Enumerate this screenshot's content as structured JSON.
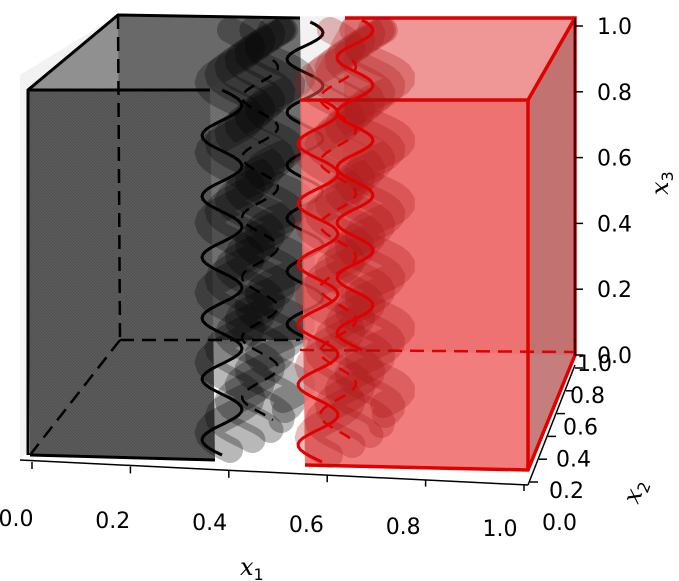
{
  "chart_data": {
    "type": "3d-surface",
    "axes": {
      "x1": {
        "label": "x",
        "subscript": "1",
        "ticks": [
          "0.0",
          "0.2",
          "0.4",
          "0.6",
          "0.8",
          "1.0"
        ],
        "range": [
          0,
          1
        ]
      },
      "x2": {
        "label": "x",
        "subscript": "2",
        "ticks": [
          "0.0",
          "0.2",
          "0.4",
          "0.6",
          "0.8",
          "1.0"
        ],
        "range": [
          0,
          1
        ]
      },
      "x3": {
        "label": "x",
        "subscript": "3",
        "ticks": [
          "0.0",
          "0.2",
          "0.4",
          "0.6",
          "0.8",
          "1.0"
        ],
        "range": [
          0,
          1
        ]
      }
    },
    "regions": [
      {
        "name": "",
        "color": "#000000",
        "fill": "#555555",
        "x1_range": [
          0,
          0.47
        ]
      },
      {
        "name": "",
        "color": "#ee0000",
        "fill": "#ee4444",
        "x1_range": [
          0.52,
          1.0
        ]
      }
    ],
    "interface": {
      "x1_center": 0.5,
      "oscillations": 6
    }
  }
}
